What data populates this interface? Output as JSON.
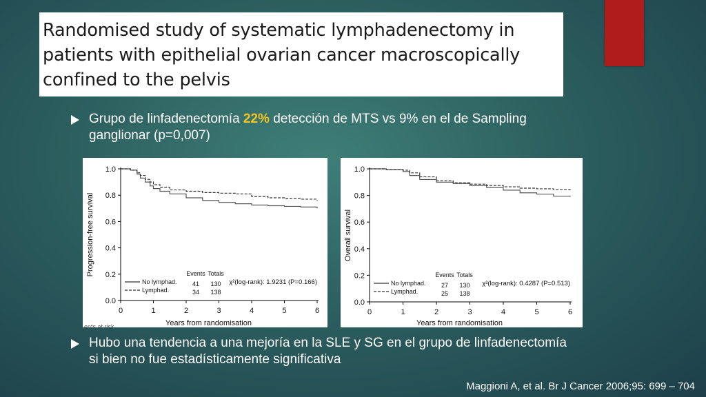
{
  "title": "Randomised study of systematic lymphadenectomy in patients with epithelial ovarian cancer macroscopically confined to the pelvis",
  "bullet1": {
    "pre": "Grupo de linfadenectomía ",
    "highlight": "22%",
    "post": " detección de MTS vs 9% en el de Sampling ganglionar (p=0,007)"
  },
  "bullet2": {
    "text": "Hubo una tendencia a una mejoría en la SLE y SG en el grupo de linfadenectomía si bien no fue estadísticamente significativa"
  },
  "citation": "Maggioni A, et al. Br J Cancer 2006;95: 699 – 704",
  "colors": {
    "accent": "#b01c1c",
    "highlight": "#f3c520"
  },
  "chart_data": [
    {
      "type": "line",
      "ylabel": "Progression-free survival",
      "xlabel": "Years from randomisation",
      "xlim": [
        0,
        6
      ],
      "ylim": [
        0,
        1
      ],
      "xticks": [
        "0",
        "1",
        "2",
        "3",
        "4",
        "5",
        "6"
      ],
      "yticks": [
        "0.0",
        "0.2",
        "0.4",
        "0.6",
        "0.8",
        "1.0"
      ],
      "legend_headers": [
        "Events",
        "Totals"
      ],
      "stat": "χ²(log-rank): 1.9231 (P=0.166)",
      "footer_fragment": "ents at risk",
      "series": [
        {
          "name": "No lymphad.",
          "style": "solid",
          "events": "41",
          "totals": "130",
          "x": [
            0,
            0.3,
            0.5,
            0.6,
            0.75,
            0.9,
            1.0,
            1.2,
            1.5,
            2.0,
            2.5,
            3.0,
            3.5,
            4.0,
            4.5,
            5.0,
            5.5,
            6.0
          ],
          "y": [
            1.0,
            0.99,
            0.96,
            0.93,
            0.9,
            0.87,
            0.85,
            0.83,
            0.81,
            0.78,
            0.76,
            0.745,
            0.735,
            0.725,
            0.72,
            0.715,
            0.71,
            0.7
          ]
        },
        {
          "name": "Lymphad.",
          "style": "dashed",
          "events": "34",
          "totals": "138",
          "x": [
            0,
            0.3,
            0.5,
            0.6,
            0.75,
            0.9,
            1.0,
            1.2,
            1.5,
            2.0,
            2.5,
            3.0,
            3.5,
            4.0,
            4.5,
            5.0,
            5.5,
            6.0
          ],
          "y": [
            1.0,
            0.99,
            0.97,
            0.95,
            0.92,
            0.9,
            0.88,
            0.86,
            0.84,
            0.83,
            0.82,
            0.815,
            0.81,
            0.79,
            0.78,
            0.775,
            0.77,
            0.76
          ]
        }
      ]
    },
    {
      "type": "line",
      "ylabel": "Overall survival",
      "xlabel": "Years from randomisation",
      "xlim": [
        0,
        6
      ],
      "ylim": [
        0,
        1
      ],
      "xticks": [
        "0",
        "1",
        "2",
        "3",
        "4",
        "5",
        "6"
      ],
      "yticks": [
        "0.0",
        "0.2",
        "0.4",
        "0.6",
        "0.8",
        "1.0"
      ],
      "legend_headers": [
        "Events",
        "Totals"
      ],
      "stat": "χ²(log-rank): 0.4287 (P=0.513)",
      "footer_fragment": "",
      "series": [
        {
          "name": "No lymphad.",
          "style": "solid",
          "events": "27",
          "totals": "130",
          "x": [
            0,
            0.5,
            1.0,
            1.2,
            1.5,
            2.0,
            2.5,
            3.0,
            3.5,
            4.0,
            4.5,
            5.0,
            5.5,
            6.0
          ],
          "y": [
            1.0,
            0.995,
            0.98,
            0.95,
            0.92,
            0.9,
            0.89,
            0.875,
            0.86,
            0.84,
            0.82,
            0.81,
            0.795,
            0.79
          ]
        },
        {
          "name": "Lymphad.",
          "style": "dashed",
          "events": "25",
          "totals": "138",
          "x": [
            0,
            0.5,
            1.0,
            1.2,
            1.5,
            2.0,
            2.5,
            3.0,
            3.5,
            4.0,
            4.5,
            5.0,
            5.5,
            6.0
          ],
          "y": [
            1.0,
            0.995,
            0.99,
            0.97,
            0.94,
            0.91,
            0.895,
            0.885,
            0.875,
            0.865,
            0.855,
            0.85,
            0.845,
            0.84
          ]
        }
      ]
    }
  ]
}
